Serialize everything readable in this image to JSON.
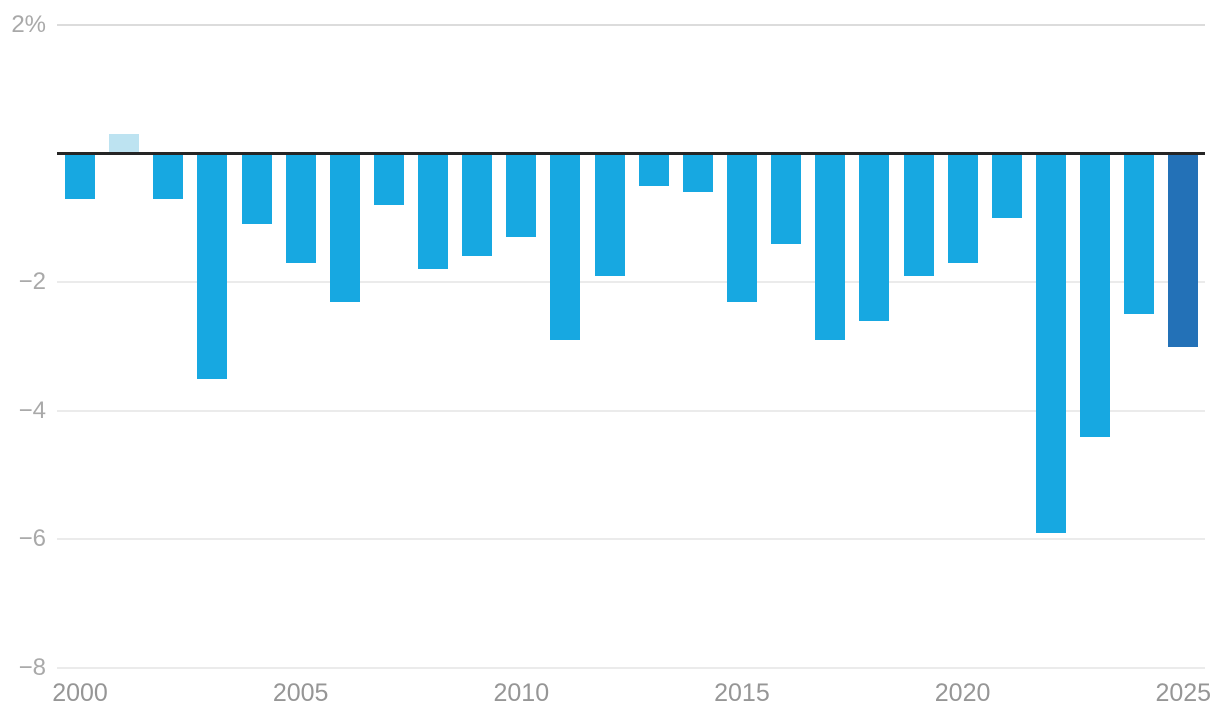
{
  "chart_data": {
    "type": "bar",
    "title": "",
    "x": [
      2000,
      2001,
      2002,
      2003,
      2004,
      2005,
      2006,
      2007,
      2008,
      2009,
      2010,
      2011,
      2012,
      2013,
      2014,
      2015,
      2016,
      2017,
      2018,
      2019,
      2020,
      2021,
      2022,
      2023,
      2024,
      2025
    ],
    "values": [
      -0.7,
      0.3,
      -0.7,
      -3.5,
      -1.1,
      -1.7,
      -2.3,
      -0.8,
      -1.8,
      -1.6,
      -1.3,
      -2.9,
      -1.9,
      -0.5,
      -0.6,
      -2.3,
      -1.4,
      -2.9,
      -2.6,
      -1.9,
      -1.7,
      -1.0,
      -5.9,
      -4.4,
      -2.5,
      -3.0
    ],
    "ylim": [
      -8,
      2
    ],
    "grid": "horizontal",
    "legend": "none",
    "xlabel": "",
    "ylabel": "",
    "y_ticks": [
      {
        "value": 2,
        "label": "2%"
      },
      {
        "value": -2,
        "label": "−2"
      },
      {
        "value": -4,
        "label": "−4"
      },
      {
        "value": -6,
        "label": "−6"
      },
      {
        "value": -8,
        "label": "−8"
      }
    ],
    "x_ticks": [
      {
        "value": 2000,
        "label": "2000"
      },
      {
        "value": 2005,
        "label": "2005"
      },
      {
        "value": 2010,
        "label": "2010"
      },
      {
        "value": 2015,
        "label": "2015"
      },
      {
        "value": 2020,
        "label": "2020"
      },
      {
        "value": 2025,
        "label": "2025"
      }
    ],
    "colors": {
      "bar_default": "#17A8E1",
      "bar_positive_2001": "#BDE3F1",
      "bar_highlight_2025": "#2371B7",
      "zero_line": "#252525",
      "gridline_top": "#DCDCDC",
      "gridline": "#EBEBEB",
      "y_tick_text": "#A9A9A9",
      "x_tick_text": "#969696",
      "background": "#FFFFFF"
    },
    "bar_color_overrides": {
      "2001": "#BDE3F1",
      "2025": "#2371B7"
    }
  }
}
